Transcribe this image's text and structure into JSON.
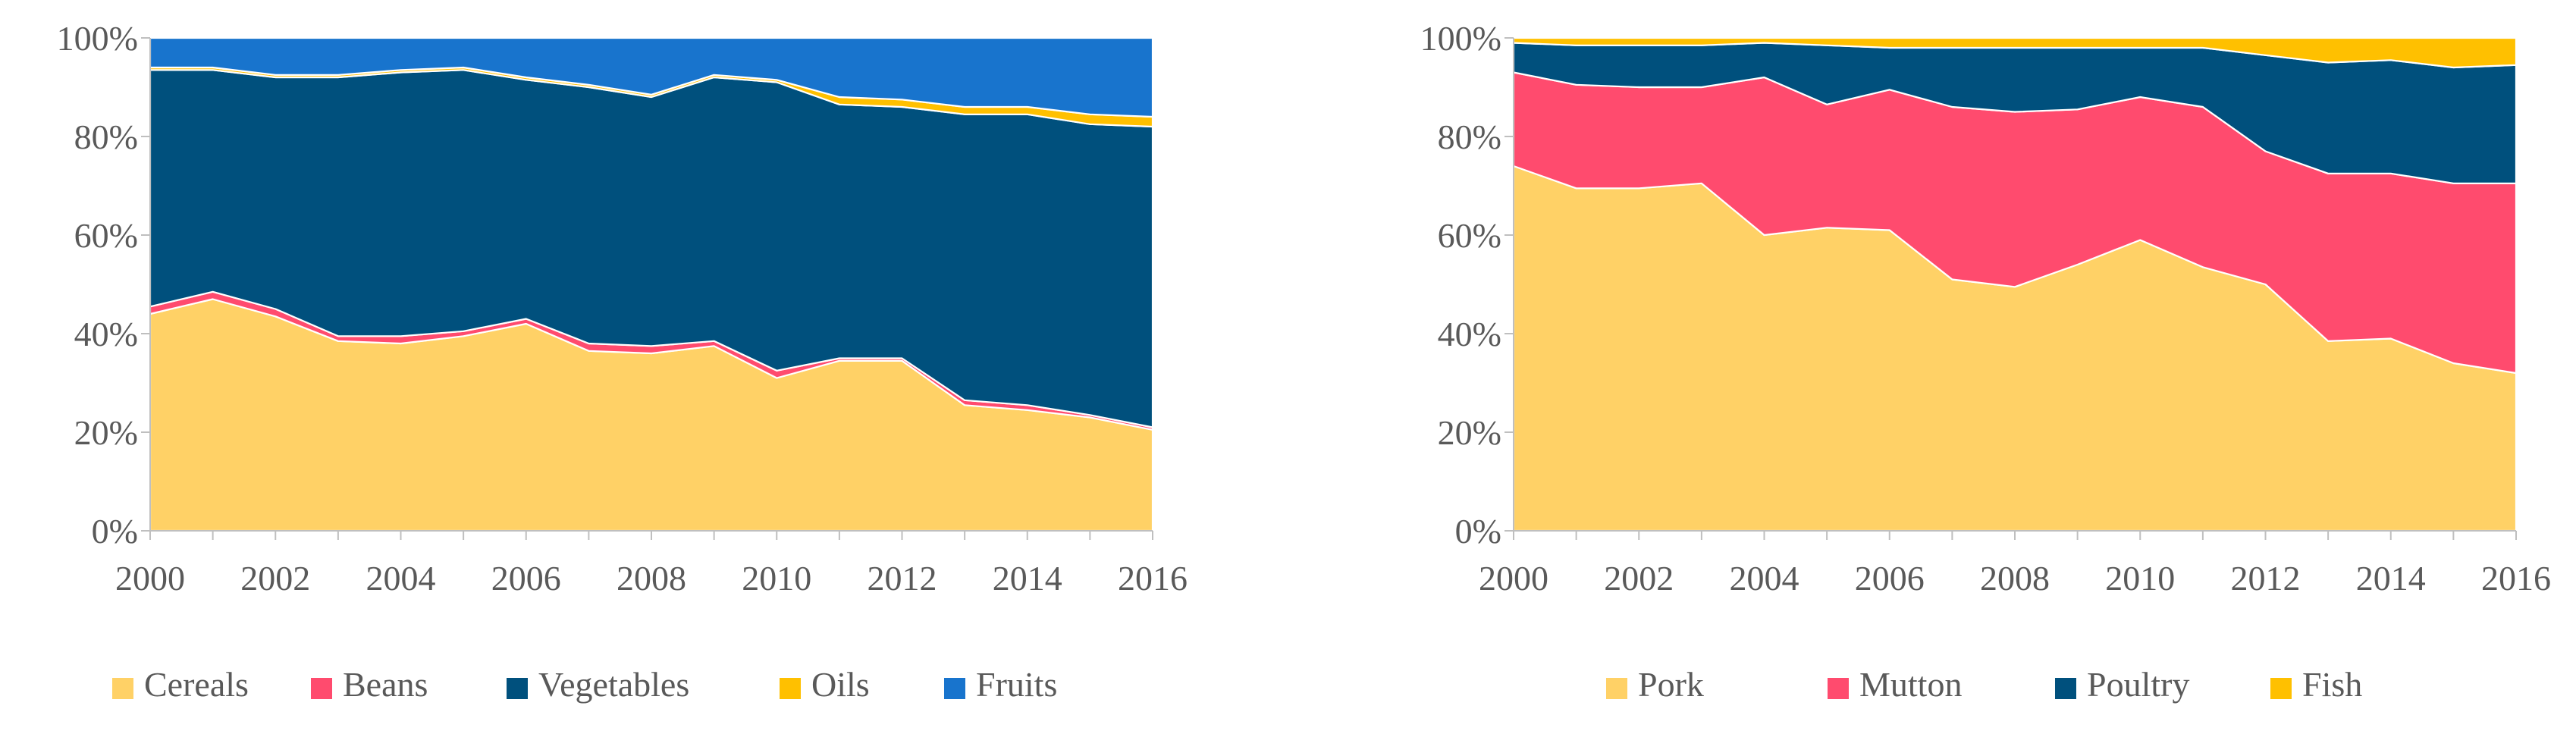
{
  "chart_data": [
    {
      "type": "area",
      "stacked": "percent",
      "title": "",
      "xlabel": "",
      "ylabel": "",
      "x": [
        2000,
        2001,
        2002,
        2003,
        2004,
        2005,
        2006,
        2007,
        2008,
        2009,
        2010,
        2011,
        2012,
        2013,
        2014,
        2015,
        2016
      ],
      "x_ticks": [
        "2000",
        "2002",
        "2004",
        "2006",
        "2008",
        "2010",
        "2012",
        "2014",
        "2016"
      ],
      "y_ticks": [
        "0%",
        "20%",
        "40%",
        "60%",
        "80%",
        "100%"
      ],
      "ylim": [
        0,
        100
      ],
      "legend_position": "bottom",
      "series": [
        {
          "name": "Cereals",
          "color": "#FFD166",
          "values": [
            44,
            47,
            43.5,
            38.5,
            38,
            39.5,
            42,
            36.5,
            36,
            37.5,
            31,
            34.5,
            34.5,
            25.5,
            24.5,
            23,
            20.5
          ]
        },
        {
          "name": "Beans",
          "color": "#FF4B6E",
          "values": [
            1.5,
            1.5,
            1.5,
            1,
            1.5,
            1,
            1,
            1.5,
            1.5,
            1,
            1.5,
            0.5,
            0.5,
            1,
            1,
            0.5,
            0.5
          ]
        },
        {
          "name": "Vegetables",
          "color": "#00507D",
          "values": [
            48,
            45,
            47,
            52.5,
            53.5,
            53,
            48.5,
            52,
            50.5,
            53.5,
            58.5,
            51.5,
            51,
            58,
            59,
            59,
            61
          ]
        },
        {
          "name": "Oils",
          "color": "#FFC000",
          "values": [
            0.5,
            0.5,
            0.5,
            0.5,
            0.5,
            0.5,
            0.5,
            0.5,
            0.5,
            0.5,
            0.5,
            1.5,
            1.5,
            1.5,
            1.5,
            2,
            2
          ]
        },
        {
          "name": "Fruits",
          "color": "#1874CD",
          "values": [
            6,
            6,
            7.5,
            7.5,
            6.5,
            6,
            8,
            9.5,
            11.5,
            7.5,
            8.5,
            12,
            12.5,
            14,
            14,
            15.5,
            16
          ]
        }
      ]
    },
    {
      "type": "area",
      "stacked": "percent",
      "title": "",
      "xlabel": "",
      "ylabel": "",
      "x": [
        2000,
        2001,
        2002,
        2003,
        2004,
        2005,
        2006,
        2007,
        2008,
        2009,
        2010,
        2011,
        2012,
        2013,
        2014,
        2015,
        2016
      ],
      "x_ticks": [
        "2000",
        "2002",
        "2004",
        "2006",
        "2008",
        "2010",
        "2012",
        "2014",
        "2016"
      ],
      "y_ticks": [
        "0%",
        "20%",
        "40%",
        "60%",
        "80%",
        "100%"
      ],
      "ylim": [
        0,
        100
      ],
      "legend_position": "bottom",
      "series": [
        {
          "name": "Pork",
          "color": "#FFD166",
          "values": [
            74,
            69.5,
            69.5,
            70.5,
            60,
            61.5,
            61,
            51,
            49.5,
            54,
            59,
            53.5,
            50,
            38.5,
            39,
            34,
            32
          ]
        },
        {
          "name": "Mutton",
          "color": "#FF4B6E",
          "values": [
            19,
            21,
            20.5,
            19.5,
            32,
            25,
            28.5,
            35,
            35.5,
            31.5,
            29,
            32.5,
            27,
            34,
            33.5,
            36.5,
            38.5
          ]
        },
        {
          "name": "Poultry",
          "color": "#00507D",
          "values": [
            6,
            8,
            8.5,
            8.5,
            7,
            12,
            8.5,
            12,
            13,
            12.5,
            10,
            12,
            19.5,
            22.5,
            23,
            23.5,
            24
          ]
        },
        {
          "name": "Fish",
          "color": "#FFC000",
          "values": [
            1,
            1.5,
            1.5,
            1.5,
            1,
            1.5,
            2,
            2,
            2,
            2,
            2,
            2,
            3.5,
            5,
            4.5,
            6,
            5.5
          ]
        }
      ]
    }
  ]
}
